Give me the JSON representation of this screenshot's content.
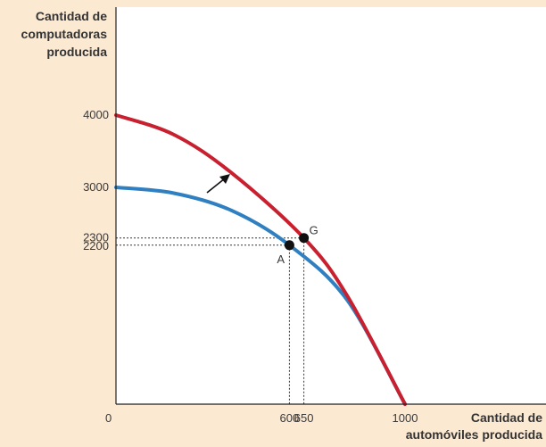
{
  "chart_data": {
    "type": "line",
    "ylabel_lines": [
      "Cantidad de",
      "computadoras",
      "producida"
    ],
    "xlabel_lines": [
      "Cantidad de",
      "automóviles producida"
    ],
    "origin_label": "0",
    "x_ticks": [
      600,
      650,
      1000
    ],
    "y_ticks": [
      2200,
      2300,
      3000,
      4000
    ],
    "xlim": [
      0,
      1300
    ],
    "ylim": [
      0,
      4600
    ],
    "series": [
      {
        "color": "#2f7fc1",
        "points": [
          [
            0,
            3000
          ],
          [
            200,
            2920
          ],
          [
            400,
            2680
          ],
          [
            600,
            2200
          ],
          [
            800,
            1440
          ],
          [
            1000,
            0
          ]
        ]
      },
      {
        "color": "#c8202f",
        "points": [
          [
            0,
            4000
          ],
          [
            200,
            3730
          ],
          [
            400,
            3200
          ],
          [
            650,
            2300
          ],
          [
            800,
            1500
          ],
          [
            1000,
            0
          ]
        ]
      }
    ],
    "points": [
      {
        "label": "A",
        "x": 600,
        "y": 2200
      },
      {
        "label": "G",
        "x": 650,
        "y": 2300
      }
    ],
    "annotations": [
      {
        "type": "arrow",
        "description": "shift arrow pointing to outer curve"
      }
    ],
    "colors": {
      "background": "#fce9d2",
      "plot_background": "#ffffff",
      "axis": "#222222"
    }
  }
}
